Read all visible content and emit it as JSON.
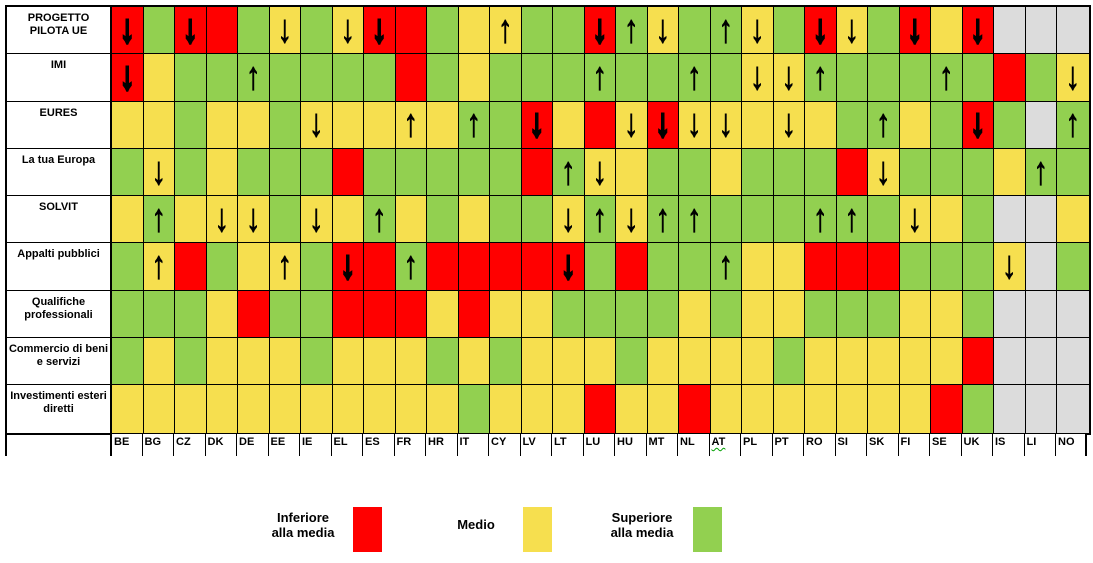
{
  "chart_data": {
    "type": "heatmap",
    "title": "",
    "x_categories": [
      "BE",
      "BG",
      "CZ",
      "DK",
      "DE",
      "EE",
      "IE",
      "EL",
      "ES",
      "FR",
      "HR",
      "IT",
      "CY",
      "LV",
      "LT",
      "LU",
      "HU",
      "MT",
      "NL",
      "AT",
      "PL",
      "PT",
      "RO",
      "SI",
      "SK",
      "FI",
      "SE",
      "UK",
      "IS",
      "LI",
      "NO"
    ],
    "y_categories": [
      "PROGETTO PILOTA UE",
      "IMI",
      "EURES",
      "La tua Europa",
      "SOLVIT",
      "Appalti pubblici",
      "Qualifiche professionali",
      "Commercio di beni e servizi",
      "Investimenti esteri diretti"
    ],
    "cell_encoding": "first char = color code (R=Inferiore alla media/red, Y=Medio/yellow, G=Superiore alla media/green, X=grigio/no data), optional trailing glyph = arrow shown in cell",
    "values": [
      [
        "R↓",
        "G",
        "R↓",
        "R",
        "G",
        "Y↓",
        "G",
        "Y↓",
        "R↓",
        "R",
        "G",
        "Y",
        "Y↑",
        "G",
        "G",
        "R↓",
        "G↑",
        "Y↓",
        "G",
        "G↑",
        "Y↓",
        "G",
        "R↓",
        "Y↓",
        "G",
        "R↓",
        "Y",
        "R↓",
        "X",
        "X",
        "X"
      ],
      [
        "R↓",
        "Y",
        "G",
        "G",
        "G↑",
        "G",
        "G",
        "G",
        "G",
        "R",
        "G",
        "Y",
        "G",
        "G",
        "G",
        "G↑",
        "G",
        "G",
        "G↑",
        "G",
        "Y↓",
        "Y↓",
        "G↑",
        "G",
        "G",
        "G",
        "G↑",
        "G",
        "R",
        "G",
        "Y↓"
      ],
      [
        "Y",
        "Y",
        "G",
        "Y",
        "Y",
        "G",
        "Y↓",
        "Y",
        "Y",
        "Y↑",
        "Y",
        "G↑",
        "G",
        "R↓",
        "Y",
        "R",
        "Y↓",
        "R↓",
        "Y↓",
        "Y↓",
        "Y",
        "Y↓",
        "Y",
        "G",
        "G↑",
        "Y",
        "G",
        "R↓",
        "G",
        "X",
        "G↑"
      ],
      [
        "G",
        "Y↓",
        "G",
        "Y",
        "G",
        "G",
        "G",
        "R",
        "G",
        "G",
        "G",
        "G",
        "G",
        "R",
        "G↑",
        "Y↓",
        "Y",
        "G",
        "G",
        "Y",
        "G",
        "G",
        "G",
        "R",
        "Y↓",
        "G",
        "G",
        "G",
        "Y",
        "G↑",
        "G"
      ],
      [
        "Y",
        "G↑",
        "Y",
        "Y↓",
        "Y↓",
        "G",
        "Y↓",
        "Y",
        "G↑",
        "Y",
        "G",
        "Y",
        "G",
        "G",
        "Y↓",
        "G↑",
        "Y↓",
        "G↑",
        "G↑",
        "G",
        "G",
        "G",
        "G↑",
        "G↑",
        "G",
        "Y↓",
        "Y",
        "G",
        "X",
        "X",
        "Y"
      ],
      [
        "G",
        "Y↑",
        "R",
        "G",
        "Y",
        "Y↑",
        "G",
        "R↓",
        "R",
        "G↑",
        "R",
        "R",
        "R",
        "R",
        "R↓",
        "G",
        "R",
        "G",
        "G",
        "G↑",
        "Y",
        "Y",
        "R",
        "R",
        "R",
        "G",
        "G",
        "G",
        "Y↓",
        "X",
        "G"
      ],
      [
        "G",
        "G",
        "G",
        "Y",
        "R",
        "G",
        "G",
        "R",
        "R",
        "R",
        "Y",
        "R",
        "Y",
        "Y",
        "G",
        "G",
        "G",
        "G",
        "Y",
        "G",
        "Y",
        "Y",
        "G",
        "G",
        "G",
        "Y",
        "Y",
        "G",
        "X",
        "X",
        "X"
      ],
      [
        "G",
        "Y",
        "G",
        "Y",
        "Y",
        "Y",
        "G",
        "Y",
        "Y",
        "Y",
        "G",
        "Y",
        "G",
        "Y",
        "Y",
        "Y",
        "G",
        "Y",
        "Y",
        "Y",
        "Y",
        "G",
        "Y",
        "Y",
        "Y",
        "Y",
        "Y",
        "R",
        "X",
        "X",
        "X"
      ],
      [
        "Y",
        "Y",
        "Y",
        "Y",
        "Y",
        "Y",
        "Y",
        "Y",
        "Y",
        "Y",
        "Y",
        "G",
        "Y",
        "Y",
        "Y",
        "R",
        "Y",
        "Y",
        "R",
        "Y",
        "Y",
        "Y",
        "Y",
        "Y",
        "Y",
        "Y",
        "R",
        "G",
        "X",
        "X",
        "X"
      ]
    ],
    "legend_entries": [
      {
        "label": "Inferiore alla media",
        "color": "#FF0000"
      },
      {
        "label": "Medio",
        "color": "#F6DF4F"
      },
      {
        "label": "Superiore alla media",
        "color": "#92D050"
      }
    ],
    "legend_position": "bottom"
  },
  "table": {
    "row_headers": [
      "PROGETTO PILOTA UE",
      "IMI",
      "EURES",
      "La tua Europa",
      "SOLVIT",
      "Appalti pubblici",
      "Qualifiche professionali",
      "Commercio di beni e servizi",
      "Investimenti esteri diretti"
    ],
    "column_headers": [
      "BE",
      "BG",
      "CZ",
      "DK",
      "DE",
      "EE",
      "IE",
      "EL",
      "ES",
      "FR",
      "HR",
      "IT",
      "CY",
      "LV",
      "LT",
      "LU",
      "HU",
      "MT",
      "NL",
      "AT",
      "PL",
      "PT",
      "RO",
      "SI",
      "SK",
      "FI",
      "SE",
      "UK",
      "IS",
      "LI",
      "NO"
    ],
    "squiggle_header": "AT",
    "color_map": {
      "R": "#FF0000",
      "Y": "#F6DF4F",
      "G": "#92D050",
      "X": "#DCDCDC"
    },
    "arrow_up": "↑",
    "arrow_down": "↓"
  },
  "legend": {
    "item1_line1": "Inferiore",
    "item1_line2": "alla media",
    "item2_line1": "Medio",
    "item3_line1": "Superiore",
    "item3_line2": "alla media"
  }
}
